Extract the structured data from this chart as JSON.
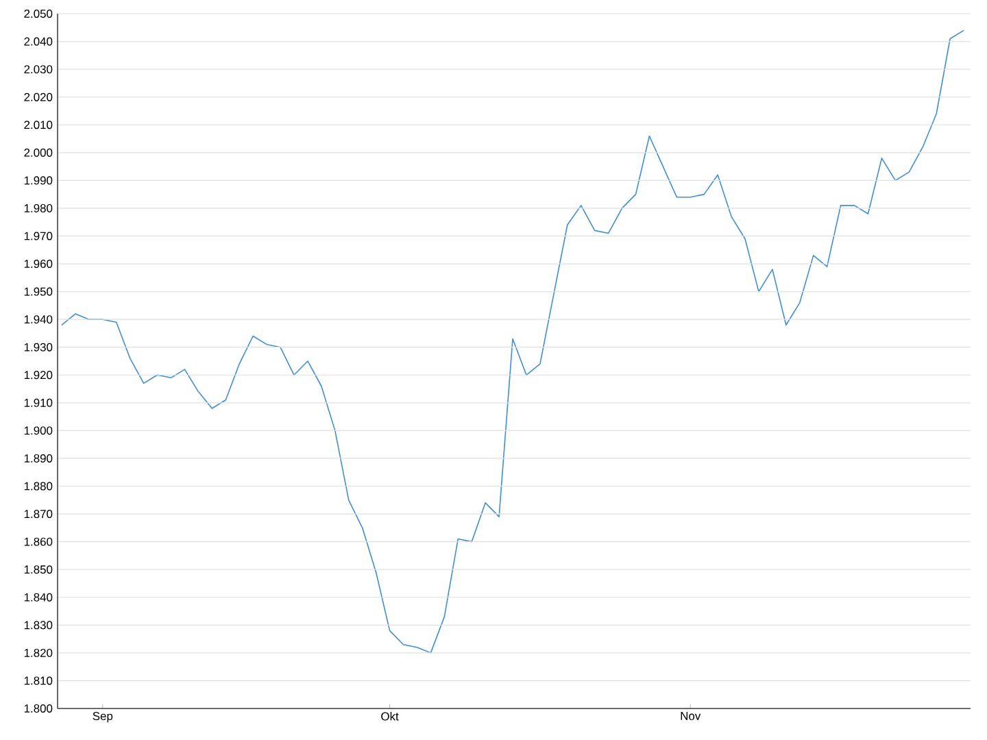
{
  "chart_data": {
    "type": "line",
    "categories": [
      null,
      null,
      null,
      "Sep",
      null,
      null,
      null,
      null,
      null,
      null,
      null,
      null,
      null,
      null,
      null,
      null,
      null,
      null,
      null,
      null,
      null,
      null,
      null,
      null,
      "Okt",
      null,
      null,
      null,
      null,
      null,
      null,
      null,
      null,
      null,
      null,
      null,
      null,
      null,
      null,
      null,
      null,
      null,
      null,
      null,
      null,
      null,
      "Nov",
      null,
      null,
      null,
      null,
      null,
      null,
      null,
      null,
      null,
      null,
      null,
      null,
      null,
      null,
      null,
      null,
      null,
      null,
      null,
      null
    ],
    "series": [
      {
        "color": "#3a8ee6",
        "values": [
          1.938,
          1.942,
          1.94,
          1.94,
          1.939,
          1.926,
          1.917,
          1.92,
          1.919,
          1.922,
          1.914,
          1.908,
          1.911,
          1.924,
          1.934,
          1.931,
          1.93,
          1.92,
          1.925,
          1.916,
          1.9,
          1.875,
          1.865,
          1.849,
          1.828,
          1.823,
          1.822,
          1.82,
          1.833,
          1.861,
          1.86,
          1.874,
          1.869,
          1.933,
          1.92,
          1.924,
          1.949,
          1.974,
          1.981,
          1.972,
          1.971,
          1.98,
          1.985,
          2.006,
          1.995,
          1.984,
          1.984,
          1.985,
          1.992,
          1.977,
          1.969,
          1.95,
          1.958,
          1.938,
          1.946,
          1.963,
          1.959,
          1.981,
          1.981,
          1.978,
          1.998,
          1.99,
          1.993,
          2.002,
          2.014,
          2.041,
          2.044
        ]
      }
    ],
    "ylim": [
      1.8,
      2.05
    ],
    "yticks": [
      {
        "value": 1.8,
        "label": "1.800"
      },
      {
        "value": 1.81,
        "label": "1.810"
      },
      {
        "value": 1.82,
        "label": "1.820"
      },
      {
        "value": 1.83,
        "label": "1.830"
      },
      {
        "value": 1.84,
        "label": "1.840"
      },
      {
        "value": 1.85,
        "label": "1.850"
      },
      {
        "value": 1.86,
        "label": "1.860"
      },
      {
        "value": 1.87,
        "label": "1.870"
      },
      {
        "value": 1.88,
        "label": "1.880"
      },
      {
        "value": 1.89,
        "label": "1.890"
      },
      {
        "value": 1.9,
        "label": "1.900"
      },
      {
        "value": 1.91,
        "label": "1.910"
      },
      {
        "value": 1.92,
        "label": "1.920"
      },
      {
        "value": 1.93,
        "label": "1.930"
      },
      {
        "value": 1.94,
        "label": "1.940"
      },
      {
        "value": 1.95,
        "label": "1.950"
      },
      {
        "value": 1.96,
        "label": "1.960"
      },
      {
        "value": 1.97,
        "label": "1.970"
      },
      {
        "value": 1.98,
        "label": "1.980"
      },
      {
        "value": 1.99,
        "label": "1.990"
      },
      {
        "value": 2.0,
        "label": "2.000"
      },
      {
        "value": 2.01,
        "label": "2.010"
      },
      {
        "value": 2.02,
        "label": "2.020"
      },
      {
        "value": 2.03,
        "label": "2.030"
      },
      {
        "value": 2.04,
        "label": "2.040"
      },
      {
        "value": 2.05,
        "label": "2.050"
      }
    ],
    "grid": "y",
    "marker": "none",
    "line_style": "solid"
  }
}
